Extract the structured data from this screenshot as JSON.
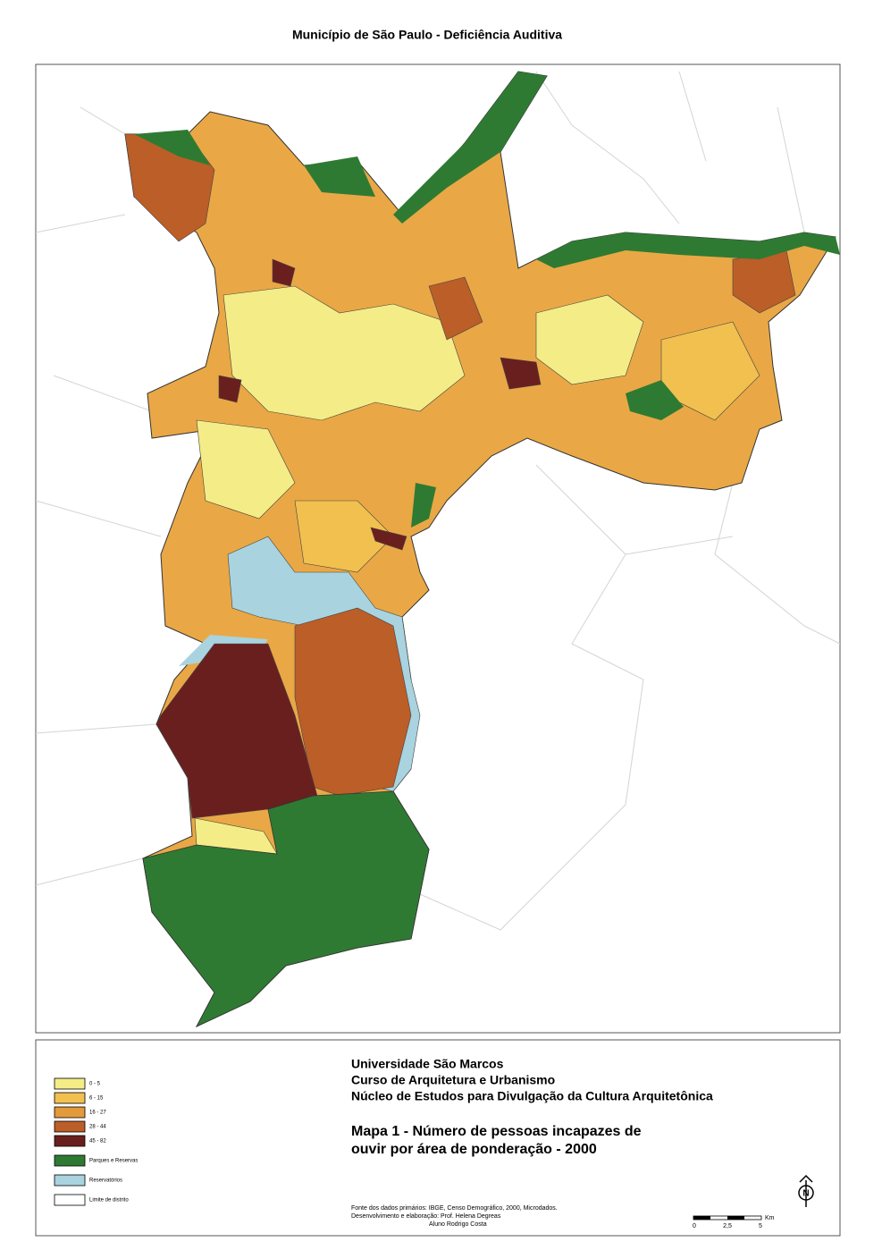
{
  "title": "Município de São Paulo - Deficiência Auditiva",
  "legend": {
    "items": [
      {
        "label": "0 - 5",
        "color": "#f4ec86"
      },
      {
        "label": "6 - 15",
        "color": "#f1c04f"
      },
      {
        "label": "16 - 27",
        "color": "#e39a3a"
      },
      {
        "label": "28 - 44",
        "color": "#bb5e28"
      },
      {
        "label": "45 - 82",
        "color": "#6a1f1f"
      },
      {
        "label": "Parques e Reservas",
        "color": "#2f7a32"
      },
      {
        "label": "Reservatórios",
        "color": "#a9d3df"
      },
      {
        "label": "Limite de distrito",
        "color": "#ffffff"
      }
    ]
  },
  "credits": {
    "institution": "Universidade São Marcos",
    "course": "Curso de Arquitetura e Urbanismo",
    "center": "Núcleo de Estudos para Divulgação da Cultura Arquitetônica",
    "map_title": [
      "Mapa 1 - Número de pessoas incapazes de",
      "ouvir por área de ponderação - 2000"
    ],
    "source": [
      "Fonte dos dados primários: IBGE, Censo Demográfico, 2000, Microdados.",
      "Desenvolvimento e elaboração: Prof. Helena Degreas",
      "Aluno Rodrigo Costa"
    ]
  },
  "scale": {
    "labels": [
      "0",
      "2,5",
      "5"
    ],
    "unit": "Km"
  },
  "north": "N"
}
